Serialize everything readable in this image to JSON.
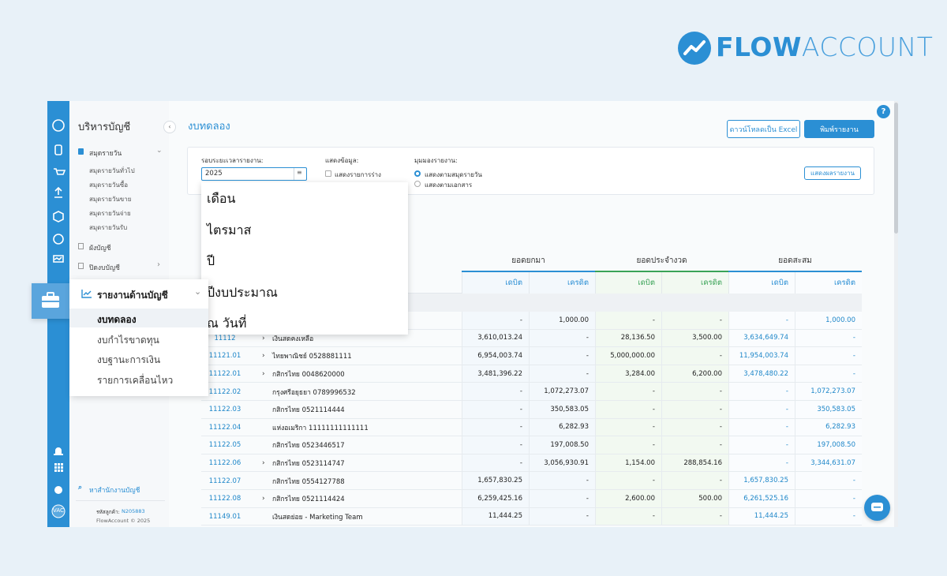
{
  "brand": {
    "logo_bold": "FLOW",
    "logo_light": "ACCOUNT"
  },
  "help": "?",
  "sidebar": {
    "title": "บริหารบัญชี",
    "journal": {
      "label": "สมุดรายวัน",
      "items": [
        "สมุดรายวันทั่วไป",
        "สมุดรายวันซื้อ",
        "สมุดรายวันขาย",
        "สมุดรายวันจ่าย",
        "สมุดรายวันรับ"
      ]
    },
    "chart_of_accounts": "ผังบัญชี",
    "closing": "ปิดงบบัญชี",
    "search": "หาสำนักงานบัญชี",
    "customer_label": "รหัสลูกค้า:",
    "customer_id": "N205883",
    "copyright": "FlowAccount © 2025",
    "avatar": "VAC"
  },
  "report_menu": {
    "title": "รายงานด้านบัญชี",
    "items": [
      "งบทดลอง",
      "งบกำไรขาดทุน",
      "งบฐานะการเงิน",
      "รายการเคลื่อนไหว"
    ]
  },
  "header": {
    "title": "งบทดลอง",
    "download": "ดาวน์โหลดเป็น Excel",
    "print": "พิมพ์รายงาน"
  },
  "filters": {
    "period_label": "รอบระยะเวลารายงาน:",
    "period_value": "2025",
    "show_label": "แสดงข้อมูล:",
    "show_draft": "แสดงรายการร่าง",
    "view_label": "มุมมองรายงาน:",
    "view_options": [
      "แสดงตามสมุดรายวัน",
      "แสดงตามเอกสาร"
    ],
    "apply": "แสดงผลรายงาน"
  },
  "period_dropdown": [
    "เดือน",
    "ไตรมาส",
    "ปี",
    "ปีงบประมาณ",
    "ณ วันที่"
  ],
  "table": {
    "groups": [
      "ยอดยกมา",
      "ยอดประจำงวด",
      "ยอดสะสม"
    ],
    "columns": [
      "เดบิต",
      "เครดิต",
      "เดบิต",
      "เครดิต",
      "เดบิต",
      "เครดิต"
    ],
    "rows": [
      {
        "values": [
          "-",
          "1,000.00",
          "-",
          "-",
          "-",
          "1,000.00"
        ]
      },
      {
        "code": "11112",
        "expand": true,
        "name": "เงินสดคงเหลือ",
        "values": [
          "3,610,013.24",
          "-",
          "28,136.50",
          "3,500.00",
          "3,634,649.74",
          "-"
        ]
      },
      {
        "code": "11121.01",
        "expand": true,
        "name": "ไทยพาณิชย์ 0528881111",
        "values": [
          "6,954,003.74",
          "-",
          "5,000,000.00",
          "-",
          "11,954,003.74",
          "-"
        ]
      },
      {
        "code": "11122.01",
        "expand": true,
        "name": "กสิกรไทย 0048620000",
        "values": [
          "3,481,396.22",
          "-",
          "3,284.00",
          "6,200.00",
          "3,478,480.22",
          "-"
        ]
      },
      {
        "code": "11122.02",
        "expand": false,
        "name": "กรุงศรีอยุธยา 0789996532",
        "values": [
          "-",
          "1,072,273.07",
          "-",
          "-",
          "-",
          "1,072,273.07"
        ]
      },
      {
        "code": "11122.03",
        "expand": false,
        "name": "กสิกรไทย 0521114444",
        "values": [
          "-",
          "350,583.05",
          "-",
          "-",
          "-",
          "350,583.05"
        ]
      },
      {
        "code": "11122.04",
        "expand": false,
        "name": "แห่งอเมริกา 11111111111111",
        "values": [
          "-",
          "6,282.93",
          "-",
          "-",
          "-",
          "6,282.93"
        ]
      },
      {
        "code": "11122.05",
        "expand": false,
        "name": "กสิกรไทย 0523446517",
        "values": [
          "-",
          "197,008.50",
          "-",
          "-",
          "-",
          "197,008.50"
        ]
      },
      {
        "code": "11122.06",
        "expand": true,
        "name": "กสิกรไทย 0523114747",
        "values": [
          "-",
          "3,056,930.91",
          "1,154.00",
          "288,854.16",
          "-",
          "3,344,631.07"
        ]
      },
      {
        "code": "11122.07",
        "expand": false,
        "name": "กสิกรไทย 0554127788",
        "values": [
          "1,657,830.25",
          "-",
          "-",
          "-",
          "1,657,830.25",
          "-"
        ]
      },
      {
        "code": "11122.08",
        "expand": true,
        "name": "กสิกรไทย 0521114424",
        "values": [
          "6,259,425.16",
          "-",
          "2,600.00",
          "500.00",
          "6,261,525.16",
          "-"
        ]
      },
      {
        "code": "11149.01",
        "expand": false,
        "name": "เงินสดย่อย - Marketing Team",
        "values": [
          "11,444.25",
          "-",
          "-",
          "-",
          "11,444.25",
          "-"
        ]
      }
    ]
  }
}
